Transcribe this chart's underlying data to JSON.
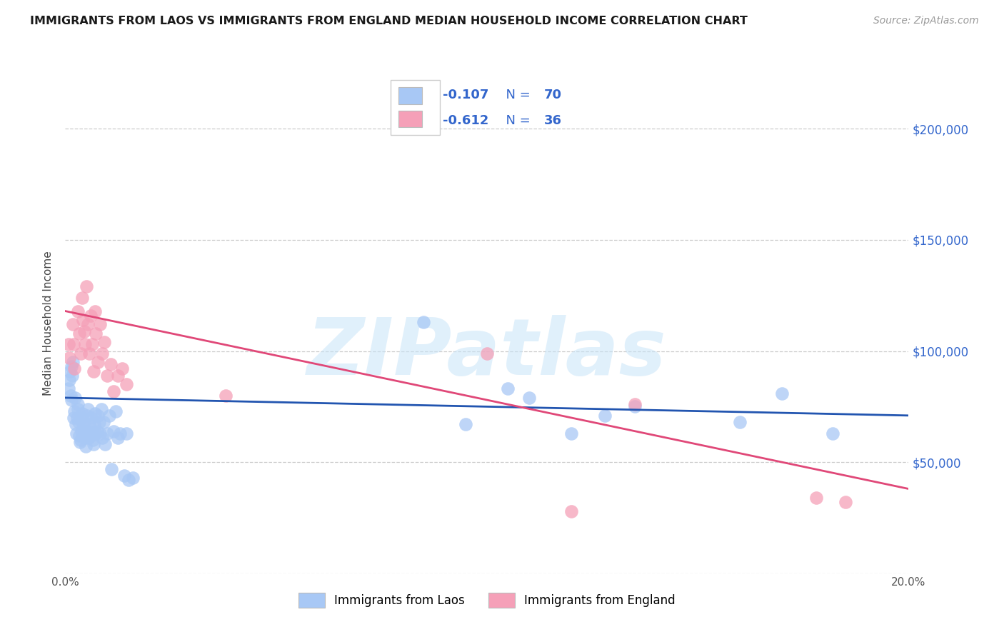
{
  "title": "IMMIGRANTS FROM LAOS VS IMMIGRANTS FROM ENGLAND MEDIAN HOUSEHOLD INCOME CORRELATION CHART",
  "source": "Source: ZipAtlas.com",
  "ylabel": "Median Household Income",
  "xmin": 0.0,
  "xmax": 0.2,
  "ymin": 0,
  "ymax": 225000,
  "yticks": [
    0,
    50000,
    100000,
    150000,
    200000
  ],
  "laos_color": "#a8c8f5",
  "england_color": "#f5a0b8",
  "laos_line_color": "#2255b0",
  "england_line_color": "#e04878",
  "legend_text_color": "#3366cc",
  "laos_R": -0.107,
  "laos_N": 70,
  "england_R": -0.612,
  "england_N": 36,
  "watermark": "ZIPatlas",
  "legend_label_laos": "Immigrants from Laos",
  "legend_label_england": "Immigrants from England",
  "laos_x": [
    0.0008,
    0.001,
    0.0012,
    0.0013,
    0.0015,
    0.0015,
    0.0017,
    0.0018,
    0.002,
    0.0022,
    0.0023,
    0.0025,
    0.0027,
    0.0028,
    0.003,
    0.003,
    0.0032,
    0.0033,
    0.0035,
    0.0037,
    0.0038,
    0.004,
    0.004,
    0.0042,
    0.0043,
    0.0045,
    0.0047,
    0.0048,
    0.005,
    0.0052,
    0.0053,
    0.0055,
    0.0057,
    0.006,
    0.0062,
    0.0063,
    0.0065,
    0.0067,
    0.0068,
    0.007,
    0.0072,
    0.0075,
    0.0078,
    0.008,
    0.0082,
    0.0085,
    0.0088,
    0.009,
    0.0095,
    0.01,
    0.0105,
    0.011,
    0.0115,
    0.012,
    0.0125,
    0.013,
    0.014,
    0.0145,
    0.015,
    0.016,
    0.085,
    0.095,
    0.105,
    0.11,
    0.12,
    0.128,
    0.135,
    0.16,
    0.17,
    0.182
  ],
  "laos_y": [
    83000,
    87000,
    91000,
    80000,
    78000,
    93000,
    89000,
    95000,
    70000,
    73000,
    79000,
    67000,
    63000,
    70000,
    74000,
    76000,
    68000,
    62000,
    59000,
    60000,
    64000,
    72000,
    70000,
    67000,
    67000,
    63000,
    61000,
    57000,
    64000,
    71000,
    74000,
    61000,
    67000,
    62000,
    70000,
    64000,
    60000,
    58000,
    67000,
    72000,
    63000,
    64000,
    71000,
    68000,
    63000,
    74000,
    61000,
    68000,
    58000,
    63000,
    71000,
    47000,
    64000,
    73000,
    61000,
    63000,
    44000,
    63000,
    42000,
    43000,
    113000,
    67000,
    83000,
    79000,
    63000,
    71000,
    75000,
    68000,
    81000,
    63000
  ],
  "england_x": [
    0.0008,
    0.001,
    0.0018,
    0.002,
    0.0022,
    0.003,
    0.0033,
    0.0037,
    0.004,
    0.0042,
    0.0045,
    0.0047,
    0.005,
    0.0053,
    0.0057,
    0.006,
    0.0063,
    0.0067,
    0.007,
    0.0073,
    0.0078,
    0.0082,
    0.0088,
    0.0092,
    0.01,
    0.0108,
    0.0115,
    0.0125,
    0.0135,
    0.0145,
    0.038,
    0.1,
    0.12,
    0.135,
    0.178,
    0.185
  ],
  "england_y": [
    103000,
    97000,
    112000,
    103000,
    92000,
    118000,
    108000,
    99000,
    124000,
    114000,
    109000,
    103000,
    129000,
    112000,
    99000,
    116000,
    103000,
    91000,
    118000,
    108000,
    95000,
    112000,
    99000,
    104000,
    89000,
    94000,
    82000,
    89000,
    92000,
    85000,
    80000,
    99000,
    28000,
    76000,
    34000,
    32000
  ],
  "laos_trendline_x": [
    0.0,
    0.2
  ],
  "laos_trendline_y": [
    79000,
    71000
  ],
  "england_trendline_x": [
    0.0,
    0.2
  ],
  "england_trendline_y": [
    118000,
    38000
  ]
}
